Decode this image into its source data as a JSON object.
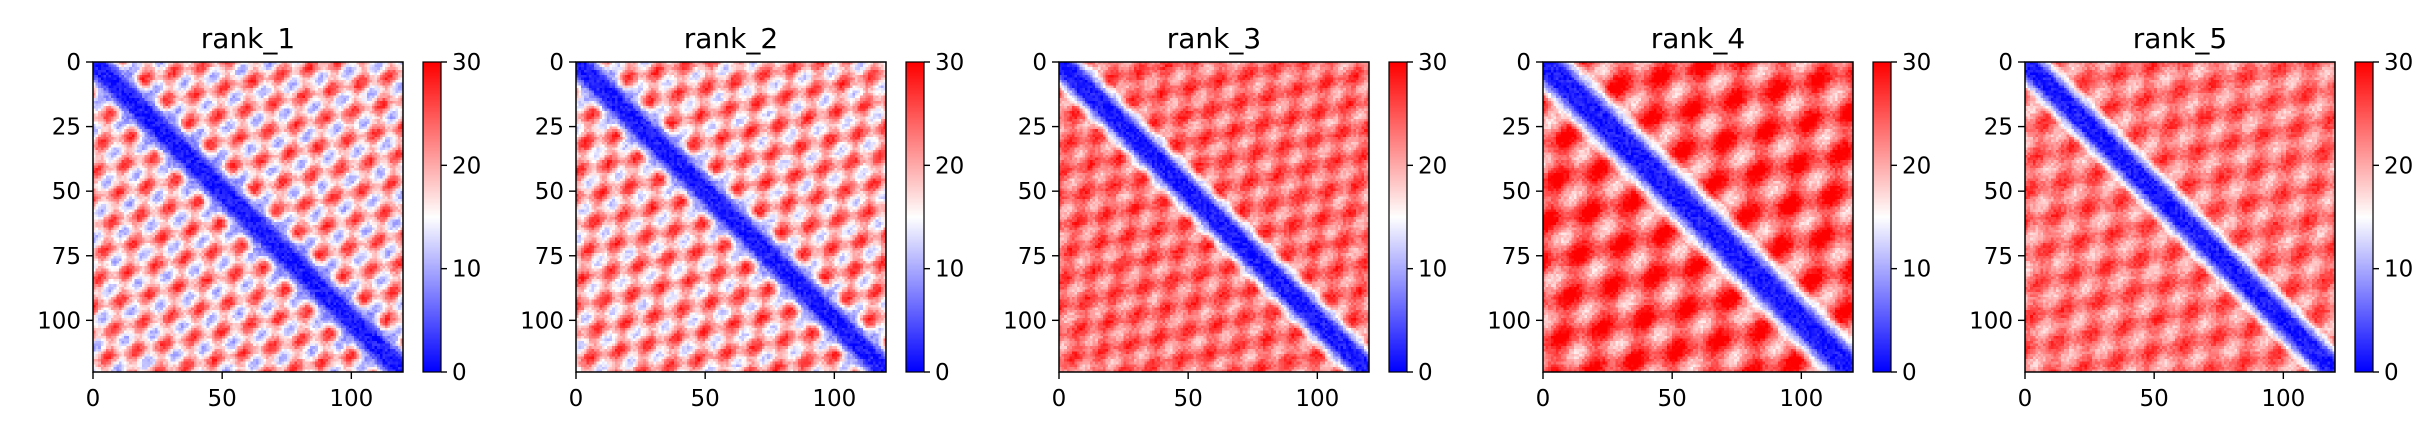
{
  "chart_data": [
    {
      "type": "heatmap",
      "title": "rank_1",
      "matrix_size": 120,
      "xlim": [
        0,
        120
      ],
      "ylim": [
        0,
        120
      ],
      "x_ticks": [
        0,
        50,
        100
      ],
      "y_ticks": [
        0,
        25,
        50,
        75,
        100
      ],
      "colorbar": {
        "min": 0,
        "max": 30,
        "ticks": [
          0,
          10,
          20,
          30
        ],
        "colormap": "bwr"
      },
      "pattern": {
        "diag_band_width": 4,
        "stripe_period": 17,
        "stripe_strength": 0.55,
        "base_far": 0.62
      }
    },
    {
      "type": "heatmap",
      "title": "rank_2",
      "matrix_size": 120,
      "xlim": [
        0,
        120
      ],
      "ylim": [
        0,
        120
      ],
      "x_ticks": [
        0,
        50,
        100
      ],
      "y_ticks": [
        0,
        25,
        50,
        75,
        100
      ],
      "colorbar": {
        "min": 0,
        "max": 30,
        "ticks": [
          0,
          10,
          20,
          30
        ],
        "colormap": "bwr"
      },
      "pattern": {
        "diag_band_width": 4,
        "stripe_period": 17,
        "stripe_strength": 0.5,
        "base_far": 0.66
      }
    },
    {
      "type": "heatmap",
      "title": "rank_3",
      "matrix_size": 120,
      "xlim": [
        0,
        120
      ],
      "ylim": [
        0,
        120
      ],
      "x_ticks": [
        0,
        50,
        100
      ],
      "y_ticks": [
        0,
        25,
        50,
        75,
        100
      ],
      "colorbar": {
        "min": 0,
        "max": 30,
        "ticks": [
          0,
          10,
          20,
          30
        ],
        "colormap": "bwr"
      },
      "pattern": {
        "diag_band_width": 4,
        "stripe_period": 17,
        "stripe_strength": 0.3,
        "base_far": 0.78
      }
    },
    {
      "type": "heatmap",
      "title": "rank_4",
      "matrix_size": 120,
      "xlim": [
        0,
        120
      ],
      "ylim": [
        0,
        120
      ],
      "x_ticks": [
        0,
        50,
        100
      ],
      "y_ticks": [
        0,
        25,
        50,
        75,
        100
      ],
      "colorbar": {
        "min": 0,
        "max": 30,
        "ticks": [
          0,
          10,
          20,
          30
        ],
        "colormap": "bwr"
      },
      "pattern": {
        "diag_band_width": 5,
        "stripe_period": 25,
        "stripe_strength": 0.45,
        "base_far": 0.82
      }
    },
    {
      "type": "heatmap",
      "title": "rank_5",
      "matrix_size": 120,
      "xlim": [
        0,
        120
      ],
      "ylim": [
        0,
        120
      ],
      "x_ticks": [
        0,
        50,
        100
      ],
      "y_ticks": [
        0,
        25,
        50,
        75,
        100
      ],
      "colorbar": {
        "min": 0,
        "max": 30,
        "ticks": [
          0,
          10,
          20,
          30
        ],
        "colormap": "bwr"
      },
      "pattern": {
        "diag_band_width": 4,
        "stripe_period": 20,
        "stripe_strength": 0.3,
        "base_far": 0.76
      }
    }
  ],
  "colors": {
    "low": "#0000ff",
    "mid": "#ffffff",
    "high": "#ff0000"
  }
}
